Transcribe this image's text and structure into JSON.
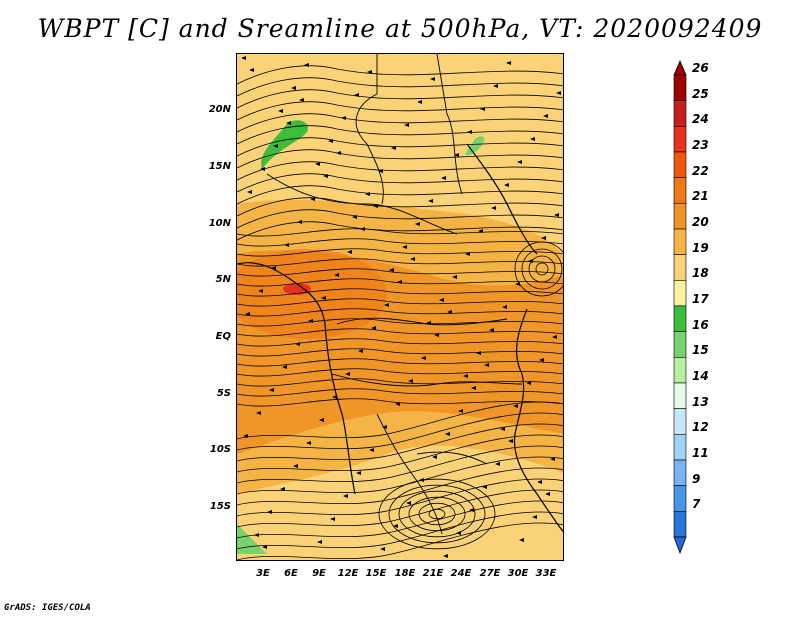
{
  "title": "WBPT [C] and Sreamline at 500hPa, VT: 2020092409",
  "credit": "GrADS: IGES/COLA",
  "axes": {
    "lat_labels": [
      "20N",
      "15N",
      "10N",
      "5N",
      "EQ",
      "5S",
      "10S",
      "15S"
    ],
    "lon_labels": [
      "3E",
      "6E",
      "9E",
      "12E",
      "15E",
      "18E",
      "21E",
      "24E",
      "27E",
      "30E",
      "33E"
    ]
  },
  "colorbar": {
    "levels": [
      "26",
      "25",
      "24",
      "23",
      "22",
      "21",
      "20",
      "19",
      "18",
      "17",
      "16",
      "15",
      "14",
      "13",
      "12",
      "11",
      "9",
      "7"
    ],
    "colors": [
      "#a00000",
      "#c81e1e",
      "#e6321e",
      "#f05a0f",
      "#f07814",
      "#f09628",
      "#f5b446",
      "#fad278",
      "#faf0a0",
      "#3cbe3c",
      "#78d26e",
      "#b4f0a0",
      "#e6fae6",
      "#c8e6fa",
      "#a0d2fa",
      "#78b4f0",
      "#4696e6",
      "#2878dc"
    ],
    "top_arrow_color": "#a00000",
    "bottom_arrow_color": "#2864dc"
  }
}
